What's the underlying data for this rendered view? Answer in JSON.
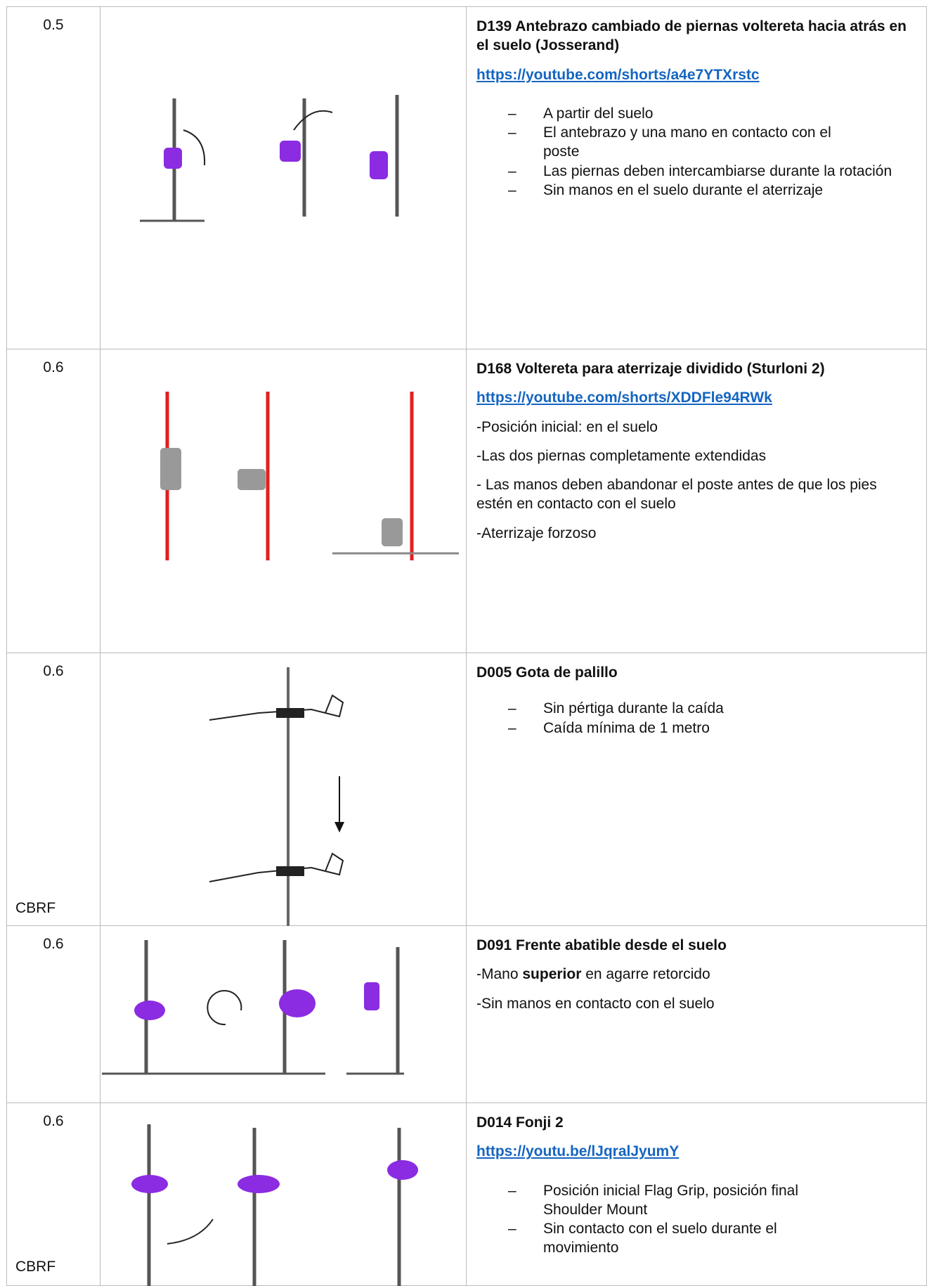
{
  "table": {
    "rows": [
      {
        "value": "0.5",
        "title": "D139 Antebrazo cambiado de piernas voltereta hacia atrás en el suelo (Josserand)",
        "link": "https://youtube.com/shorts/a4e7YTXrstc",
        "bullets": [
          "A partir del suelo",
          "El antebrazo y una mano en contacto con el poste",
          "Las piernas deben intercambiarse durante la rotación",
          "Sin manos en el suelo durante el aterrizaje"
        ]
      },
      {
        "value": "0.6",
        "title": "D168 Voltereta para aterrizaje dividido (Sturloni 2)",
        "link": "https://youtube.com/shorts/XDDFle94RWk",
        "paragraphs": [
          "-Posición inicial: en el suelo",
          "-Las dos piernas completamente extendidas",
          "- Las manos deben abandonar el poste antes de que los pies estén en contacto con el suelo",
          "-Aterrizaje forzoso"
        ]
      },
      {
        "value": "0.6",
        "note": "CBRF",
        "title": "D005 Gota de palillo",
        "bullets": [
          "Sin pértiga durante la caída",
          "Caída mínima de 1 metro"
        ]
      },
      {
        "value": "0.6",
        "title": "D091 Frente abatible desde el suelo",
        "paragraphs": [
          [
            "-Mano ",
            "superior",
            " en agarre retorcido"
          ],
          "-Sin manos en contacto con el suelo"
        ]
      },
      {
        "value": "0.6",
        "note": "CBRF",
        "title": "D014 Fonji 2",
        "link": "https://youtu.be/lJqralJyumY",
        "bullets": [
          "Posición inicial Flag Grip, posición final Shoulder Mount",
          "Sin contacto con el suelo durante el movimiento"
        ]
      }
    ]
  }
}
